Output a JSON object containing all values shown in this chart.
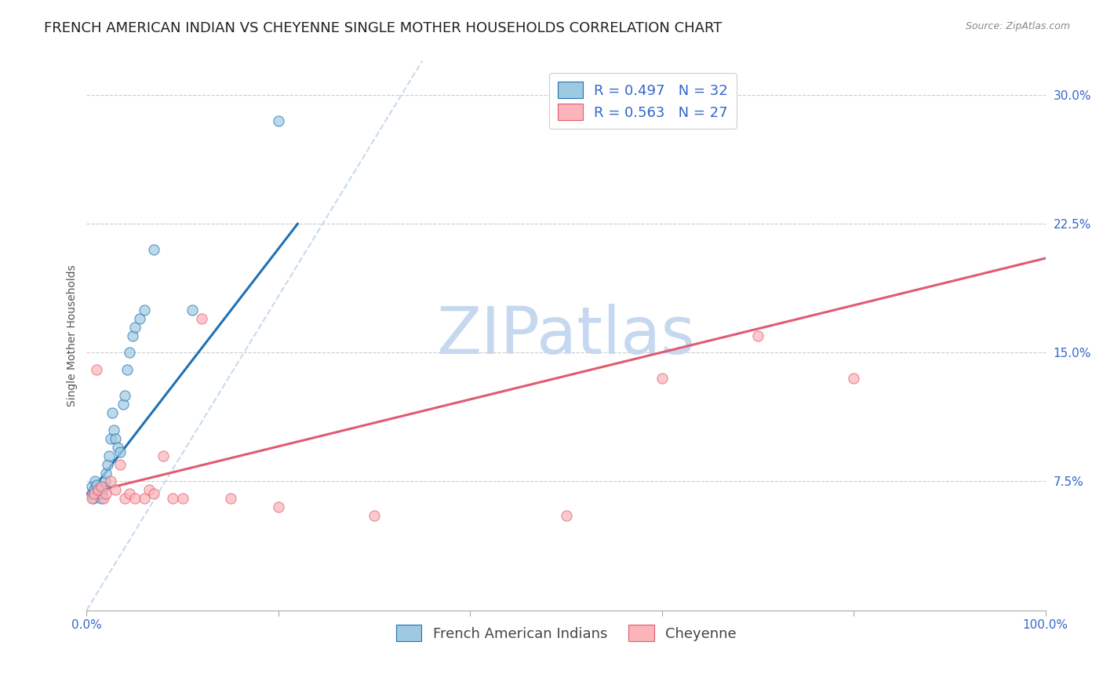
{
  "title": "FRENCH AMERICAN INDIAN VS CHEYENNE SINGLE MOTHER HOUSEHOLDS CORRELATION CHART",
  "source": "Source: ZipAtlas.com",
  "ylabel": "Single Mother Households",
  "yticks": [
    "7.5%",
    "15.0%",
    "22.5%",
    "30.0%"
  ],
  "ytick_vals": [
    0.075,
    0.15,
    0.225,
    0.3
  ],
  "xlim": [
    0.0,
    1.0
  ],
  "ylim": [
    0.0,
    0.32
  ],
  "legend1_label": "R = 0.497   N = 32",
  "legend2_label": "R = 0.563   N = 27",
  "legend_color": "#3366cc",
  "watermark_zip": "ZIP",
  "watermark_atlas": "atlas",
  "blue_scatter_x": [
    0.005,
    0.005,
    0.007,
    0.008,
    0.009,
    0.01,
    0.012,
    0.013,
    0.015,
    0.016,
    0.018,
    0.019,
    0.02,
    0.022,
    0.023,
    0.025,
    0.027,
    0.028,
    0.03,
    0.032,
    0.035,
    0.038,
    0.04,
    0.042,
    0.045,
    0.048,
    0.05,
    0.055,
    0.06,
    0.07,
    0.11,
    0.2
  ],
  "blue_scatter_y": [
    0.068,
    0.072,
    0.065,
    0.07,
    0.075,
    0.073,
    0.068,
    0.07,
    0.065,
    0.068,
    0.072,
    0.075,
    0.08,
    0.085,
    0.09,
    0.1,
    0.115,
    0.105,
    0.1,
    0.095,
    0.092,
    0.12,
    0.125,
    0.14,
    0.15,
    0.16,
    0.165,
    0.17,
    0.175,
    0.21,
    0.175,
    0.285
  ],
  "pink_scatter_x": [
    0.005,
    0.008,
    0.01,
    0.012,
    0.015,
    0.018,
    0.02,
    0.025,
    0.03,
    0.035,
    0.04,
    0.045,
    0.05,
    0.06,
    0.065,
    0.07,
    0.08,
    0.09,
    0.1,
    0.12,
    0.15,
    0.2,
    0.3,
    0.5,
    0.6,
    0.7,
    0.8
  ],
  "pink_scatter_y": [
    0.065,
    0.068,
    0.14,
    0.07,
    0.072,
    0.065,
    0.068,
    0.075,
    0.07,
    0.085,
    0.065,
    0.068,
    0.065,
    0.065,
    0.07,
    0.068,
    0.09,
    0.065,
    0.065,
    0.17,
    0.065,
    0.06,
    0.055,
    0.055,
    0.135,
    0.16,
    0.135
  ],
  "blue_line_x": [
    0.003,
    0.22
  ],
  "blue_line_y": [
    0.068,
    0.225
  ],
  "pink_line_x": [
    0.0,
    1.0
  ],
  "pink_line_y": [
    0.068,
    0.205
  ],
  "dashed_line_x": [
    0.0,
    0.35
  ],
  "dashed_line_y": [
    0.0,
    0.32
  ],
  "blue_color": "#9ecae1",
  "pink_color": "#fbb4b9",
  "blue_line_color": "#2171b5",
  "pink_line_color": "#e05b72",
  "dashed_color": "#c6dbef",
  "background_color": "#ffffff",
  "grid_color": "#cccccc",
  "title_fontsize": 13,
  "axis_label_fontsize": 10,
  "tick_fontsize": 11,
  "legend_fontsize": 13,
  "watermark_fontsize": 60,
  "watermark_color_zip": "#c5d8f0",
  "watermark_color_atlas": "#c5d8f0"
}
